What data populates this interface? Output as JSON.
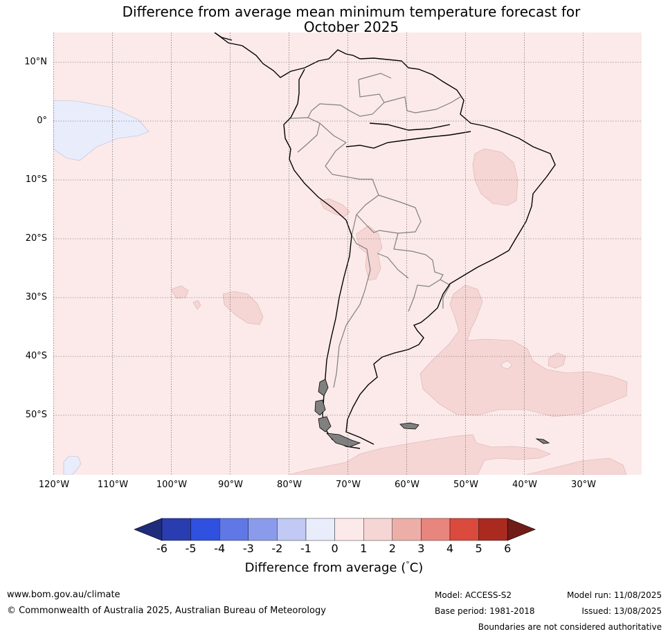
{
  "title": {
    "line1": "Difference from average mean minimum temperature forecast for",
    "line2": "October 2025"
  },
  "map": {
    "region": "South America",
    "lat_labels": [
      "10°N",
      "0°",
      "10°S",
      "20°S",
      "30°S",
      "40°S",
      "50°S"
    ],
    "lon_labels": [
      "120°W",
      "110°W",
      "100°W",
      "90°W",
      "80°W",
      "70°W",
      "60°W",
      "50°W",
      "40°W",
      "30°W"
    ],
    "background_class": "0 to 1",
    "colors": {
      "ocean_fill": "#fbeae9",
      "weak_warm": "#f5d6d4",
      "weak_cool": "#e9ecfb",
      "coast": "#000000",
      "borders": "#808080",
      "grid": "#555555"
    }
  },
  "colorbar": {
    "ticks": [
      "-6",
      "-5",
      "-4",
      "-3",
      "-2",
      "-1",
      "0",
      "1",
      "2",
      "3",
      "4",
      "5",
      "6"
    ],
    "colors": [
      "#1f2c7a",
      "#2a3db0",
      "#3050e0",
      "#5f78e6",
      "#8a9bec",
      "#c1c9f4",
      "#e9ecfb",
      "#fbeae9",
      "#f5d6d4",
      "#edaea8",
      "#e8857c",
      "#da4a3d",
      "#ab2a20",
      "#701c18"
    ],
    "label": "Difference from average (°C)",
    "label_prefix": "Difference from average (",
    "label_degree": "°",
    "label_suffix": "C)"
  },
  "footer": {
    "website": "www.bom.gov.au/climate",
    "copyright": "© Commonwealth of Australia 2025, Australian Bureau of Meteorology",
    "model": "Model: ACCESS-S2",
    "base_period": "Base period: 1981-2018",
    "model_run": "Model run: 11/08/2025",
    "issued": "Issued: 13/08/2025",
    "disclaimer": "Boundaries are not considered authoritative"
  }
}
